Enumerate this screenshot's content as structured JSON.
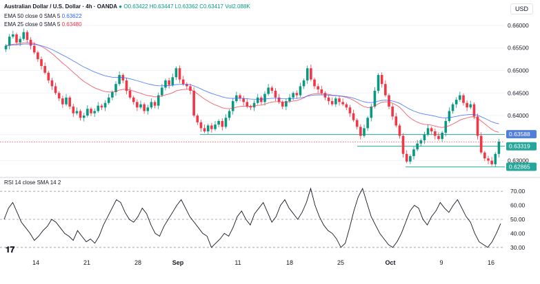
{
  "header": {
    "symbol": "Australian Dollar / U.S. Dollar · 4h · OANDA",
    "ohlc": {
      "o": "O0.63422",
      "h": "H0.63447",
      "l": "L0.63362",
      "c": "C0.63417",
      "vol": "Vol2.088K"
    },
    "ema50": {
      "label": "EMA 50 close 0 SMA 5",
      "value": "0.63622"
    },
    "ema25": {
      "label": "EMA 25 close 0 SMA 5",
      "value": "0.63480"
    },
    "currency": "USD"
  },
  "rsi_header": {
    "label": "RSI 14 close SMA 14 2"
  },
  "colors": {
    "up": "#089981",
    "down": "#f23645",
    "ema50": "#2962ff",
    "ema25": "#f23645",
    "support": "#26a69a",
    "rsi": "#131722",
    "grid": "#f0f3fa"
  },
  "chart_data": [
    {
      "type": "candlestick",
      "title": "Australian Dollar / U.S. Dollar · 4h · OANDA",
      "ylim": [
        0.6275,
        0.6635
      ],
      "y_ticks": [
        0.66,
        0.655,
        0.65,
        0.645,
        0.64,
        0.6358,
        0.63
      ],
      "y_tick_labels": [
        "0.66000",
        "0.65500",
        "0.65000",
        "0.64500",
        "0.64000",
        "0.63588",
        "0.63000"
      ],
      "x_tick_labels": [
        "14",
        "21",
        "28",
        "Sep",
        "11",
        "18",
        "25",
        "Oct",
        "9",
        "16"
      ],
      "price_markers": [
        {
          "label": "0.63588",
          "value": 0.63588
        },
        {
          "label": "0.63319",
          "value": 0.63319
        },
        {
          "label": "0.62865",
          "value": 0.62865
        }
      ],
      "support_lines": [
        0.6358,
        0.6332,
        0.6286
      ],
      "last_price": 0.63417,
      "series": [
        {
          "name": "AUD/USD",
          "close": [
            0.6555,
            0.6575,
            0.658,
            0.6562,
            0.657,
            0.6585,
            0.6568,
            0.6555,
            0.654,
            0.6525,
            0.651,
            0.6495,
            0.6478,
            0.6465,
            0.645,
            0.6438,
            0.6425,
            0.644,
            0.642,
            0.6405,
            0.641,
            0.6395,
            0.64,
            0.6415,
            0.6405,
            0.641,
            0.6422,
            0.6418,
            0.6428,
            0.644,
            0.6452,
            0.647,
            0.649,
            0.6478,
            0.6455,
            0.644,
            0.643,
            0.6418,
            0.6425,
            0.641,
            0.6418,
            0.643,
            0.6422,
            0.6445,
            0.6462,
            0.6478,
            0.6468,
            0.6485,
            0.6505,
            0.648,
            0.647,
            0.6465,
            0.6455,
            0.64,
            0.6385,
            0.6372,
            0.6365,
            0.6378,
            0.637,
            0.638,
            0.6388,
            0.6375,
            0.6395,
            0.641,
            0.6432,
            0.6445,
            0.6438,
            0.643,
            0.642,
            0.6418,
            0.6428,
            0.644,
            0.643,
            0.6448,
            0.6462,
            0.6455,
            0.644,
            0.643,
            0.642,
            0.6432,
            0.644,
            0.645,
            0.6445,
            0.6465,
            0.6478,
            0.6505,
            0.648,
            0.6465,
            0.6458,
            0.645,
            0.644,
            0.6432,
            0.6425,
            0.6438,
            0.643,
            0.6425,
            0.6418,
            0.6405,
            0.639,
            0.6375,
            0.6355,
            0.6372,
            0.6395,
            0.642,
            0.6455,
            0.649,
            0.647,
            0.6445,
            0.642,
            0.6398,
            0.6378,
            0.6355,
            0.6315,
            0.6298,
            0.631,
            0.6325,
            0.6338,
            0.6345,
            0.6358,
            0.6372,
            0.6365,
            0.6355,
            0.6348,
            0.6362,
            0.6388,
            0.641,
            0.6425,
            0.6435,
            0.6445,
            0.6428,
            0.6418,
            0.6425,
            0.6398,
            0.6355,
            0.6318,
            0.6305,
            0.63,
            0.6292,
            0.6315,
            0.6342
          ]
        }
      ]
    },
    {
      "type": "line",
      "title": "RSI 14 close SMA 14 2",
      "ylim": [
        25,
        75
      ],
      "y_ticks": [
        70,
        60,
        50,
        40,
        30
      ],
      "y_tick_labels": [
        "70.00",
        "60.00",
        "50.00",
        "40.00",
        "30.00"
      ],
      "guide_lines": [
        70,
        50,
        30
      ],
      "series": [
        {
          "name": "RSI",
          "values": [
            50,
            58,
            62,
            55,
            48,
            44,
            40,
            35,
            38,
            42,
            45,
            50,
            48,
            44,
            40,
            38,
            35,
            42,
            38,
            34,
            36,
            33,
            38,
            46,
            52,
            58,
            64,
            62,
            55,
            50,
            48,
            52,
            58,
            54,
            46,
            40,
            38,
            45,
            50,
            55,
            60,
            64,
            58,
            52,
            48,
            44,
            40,
            38,
            30,
            33,
            36,
            40,
            38,
            44,
            52,
            56,
            50,
            46,
            54,
            58,
            62,
            55,
            48,
            52,
            60,
            64,
            58,
            54,
            50,
            55,
            62,
            72,
            60,
            52,
            46,
            42,
            40,
            36,
            30,
            33,
            44,
            56,
            66,
            72,
            62,
            52,
            46,
            40,
            36,
            32,
            30,
            34,
            40,
            48,
            56,
            60,
            58,
            50,
            46,
            52,
            56,
            62,
            58,
            55,
            60,
            64,
            58,
            52,
            48,
            40,
            34,
            32,
            30,
            34,
            40,
            47
          ]
        }
      ]
    }
  ]
}
